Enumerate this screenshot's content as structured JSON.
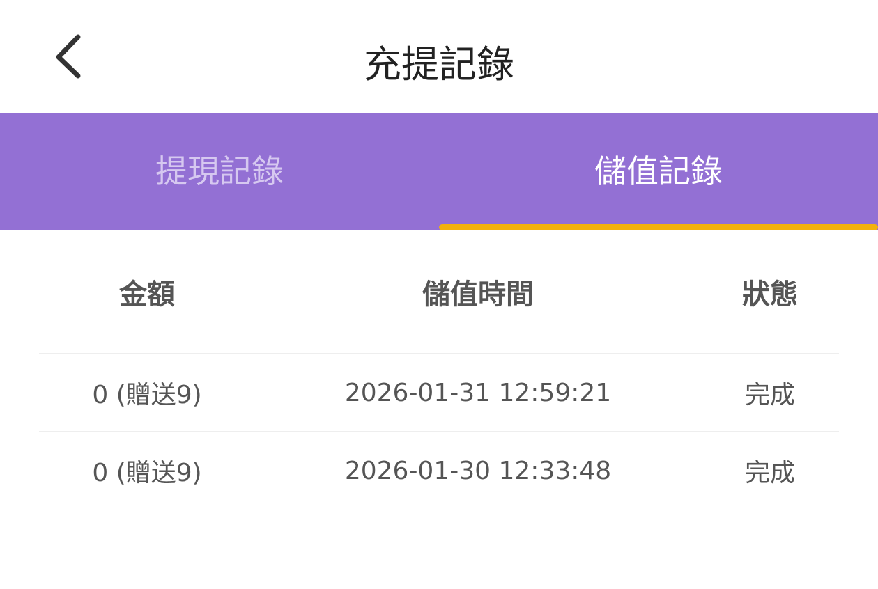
{
  "header": {
    "title": "充提記錄",
    "back_icon": "chevron-left-icon"
  },
  "tabs": [
    {
      "label": "提現記錄",
      "active": false
    },
    {
      "label": "儲值記錄",
      "active": true
    }
  ],
  "colors": {
    "tab_bar": "#9370d4",
    "indicator": "#f2b10d"
  },
  "table": {
    "columns": [
      "金額",
      "儲值時間",
      "狀態"
    ],
    "rows": [
      {
        "amount": "0 (贈送9)",
        "time": "2026-01-31 12:59:21",
        "status": "完成"
      },
      {
        "amount": "0 (贈送9)",
        "time": "2026-01-30 12:33:48",
        "status": "完成"
      }
    ]
  }
}
